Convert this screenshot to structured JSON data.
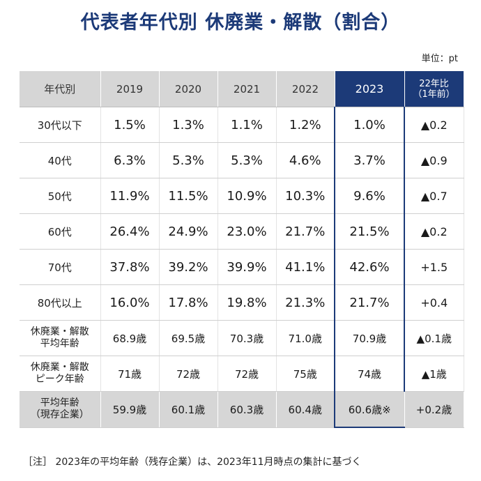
{
  "header": {
    "title": "代表者年代別 休廃業・解散（割合）",
    "unit": "単位：pt"
  },
  "table": {
    "headers": [
      "年代別",
      "2019",
      "2020",
      "2021",
      "2022",
      "2023",
      "22年比",
      "（1年前）"
    ],
    "rows": [
      {
        "label": [
          "30代以下"
        ],
        "cells": [
          "1.5%",
          "1.3%",
          "1.1%",
          "1.2%",
          "1.0%",
          "▲0.2"
        ]
      },
      {
        "label": [
          "40代"
        ],
        "cells": [
          "6.3%",
          "5.3%",
          "5.3%",
          "4.6%",
          "3.7%",
          "▲0.9"
        ]
      },
      {
        "label": [
          "50代"
        ],
        "cells": [
          "11.9%",
          "11.5%",
          "10.9%",
          "10.3%",
          "9.6%",
          "▲0.7"
        ]
      },
      {
        "label": [
          "60代"
        ],
        "cells": [
          "26.4%",
          "24.9%",
          "23.0%",
          "21.7%",
          "21.5%",
          "▲0.2"
        ]
      },
      {
        "label": [
          "70代"
        ],
        "cells": [
          "37.8%",
          "39.2%",
          "39.9%",
          "41.1%",
          "42.6%",
          "+1.5"
        ]
      },
      {
        "label": [
          "80代以上"
        ],
        "cells": [
          "16.0%",
          "17.8%",
          "19.8%",
          "21.3%",
          "21.7%",
          "+0.4"
        ]
      },
      {
        "label": [
          "休廃業・解散",
          "平均年齢"
        ],
        "cells": [
          "68.9歳",
          "69.5歳",
          "70.3歳",
          "71.0歳",
          "70.9歳",
          "▲0.1歳"
        ]
      },
      {
        "label": [
          "休廃業・解散",
          "ピーク年齢"
        ],
        "cells": [
          "71歳",
          "72歳",
          "72歳",
          "75歳",
          "74歳",
          "▲1歳"
        ]
      },
      {
        "label": [
          "平均年齢",
          "（現存企業）"
        ],
        "cells": [
          "59.9歳",
          "60.1歳",
          "60.3歳",
          "60.4歳",
          "60.6歳※",
          "+0.2歳"
        ]
      }
    ]
  },
  "note": "［注］ 2023年の平均年齢（残存企業）は、2023年11月時点の集計に基づく",
  "chart_data": {
    "type": "table",
    "title": "代表者年代別 休廃業・解散（割合）",
    "unit": "単位：pt",
    "columns": [
      "2019",
      "2020",
      "2021",
      "2022",
      "2023",
      "22年比（1年前）"
    ],
    "series": [
      {
        "name": "30代以下",
        "values": [
          1.5,
          1.3,
          1.1,
          1.2,
          1.0
        ],
        "change": "▲0.2"
      },
      {
        "name": "40代",
        "values": [
          6.3,
          5.3,
          5.3,
          4.6,
          3.7
        ],
        "change": "▲0.9"
      },
      {
        "name": "50代",
        "values": [
          11.9,
          11.5,
          10.9,
          10.3,
          9.6
        ],
        "change": "▲0.7"
      },
      {
        "name": "60代",
        "values": [
          26.4,
          24.9,
          23.0,
          21.7,
          21.5
        ],
        "change": "▲0.2"
      },
      {
        "name": "70代",
        "values": [
          37.8,
          39.2,
          39.9,
          41.1,
          42.6
        ],
        "change": "+1.5"
      },
      {
        "name": "80代以上",
        "values": [
          16.0,
          17.8,
          19.8,
          21.3,
          21.7
        ],
        "change": "+0.4"
      },
      {
        "name": "休廃業・解散 平均年齢",
        "values": [
          68.9,
          69.5,
          70.3,
          71.0,
          70.9
        ],
        "change": "▲0.1歳"
      },
      {
        "name": "休廃業・解散 ピーク年齢",
        "values": [
          71,
          72,
          72,
          75,
          74
        ],
        "change": "▲1歳"
      },
      {
        "name": "平均年齢（現存企業）",
        "values": [
          59.9,
          60.1,
          60.3,
          60.4,
          60.6
        ],
        "change": "+0.2歳"
      }
    ]
  }
}
